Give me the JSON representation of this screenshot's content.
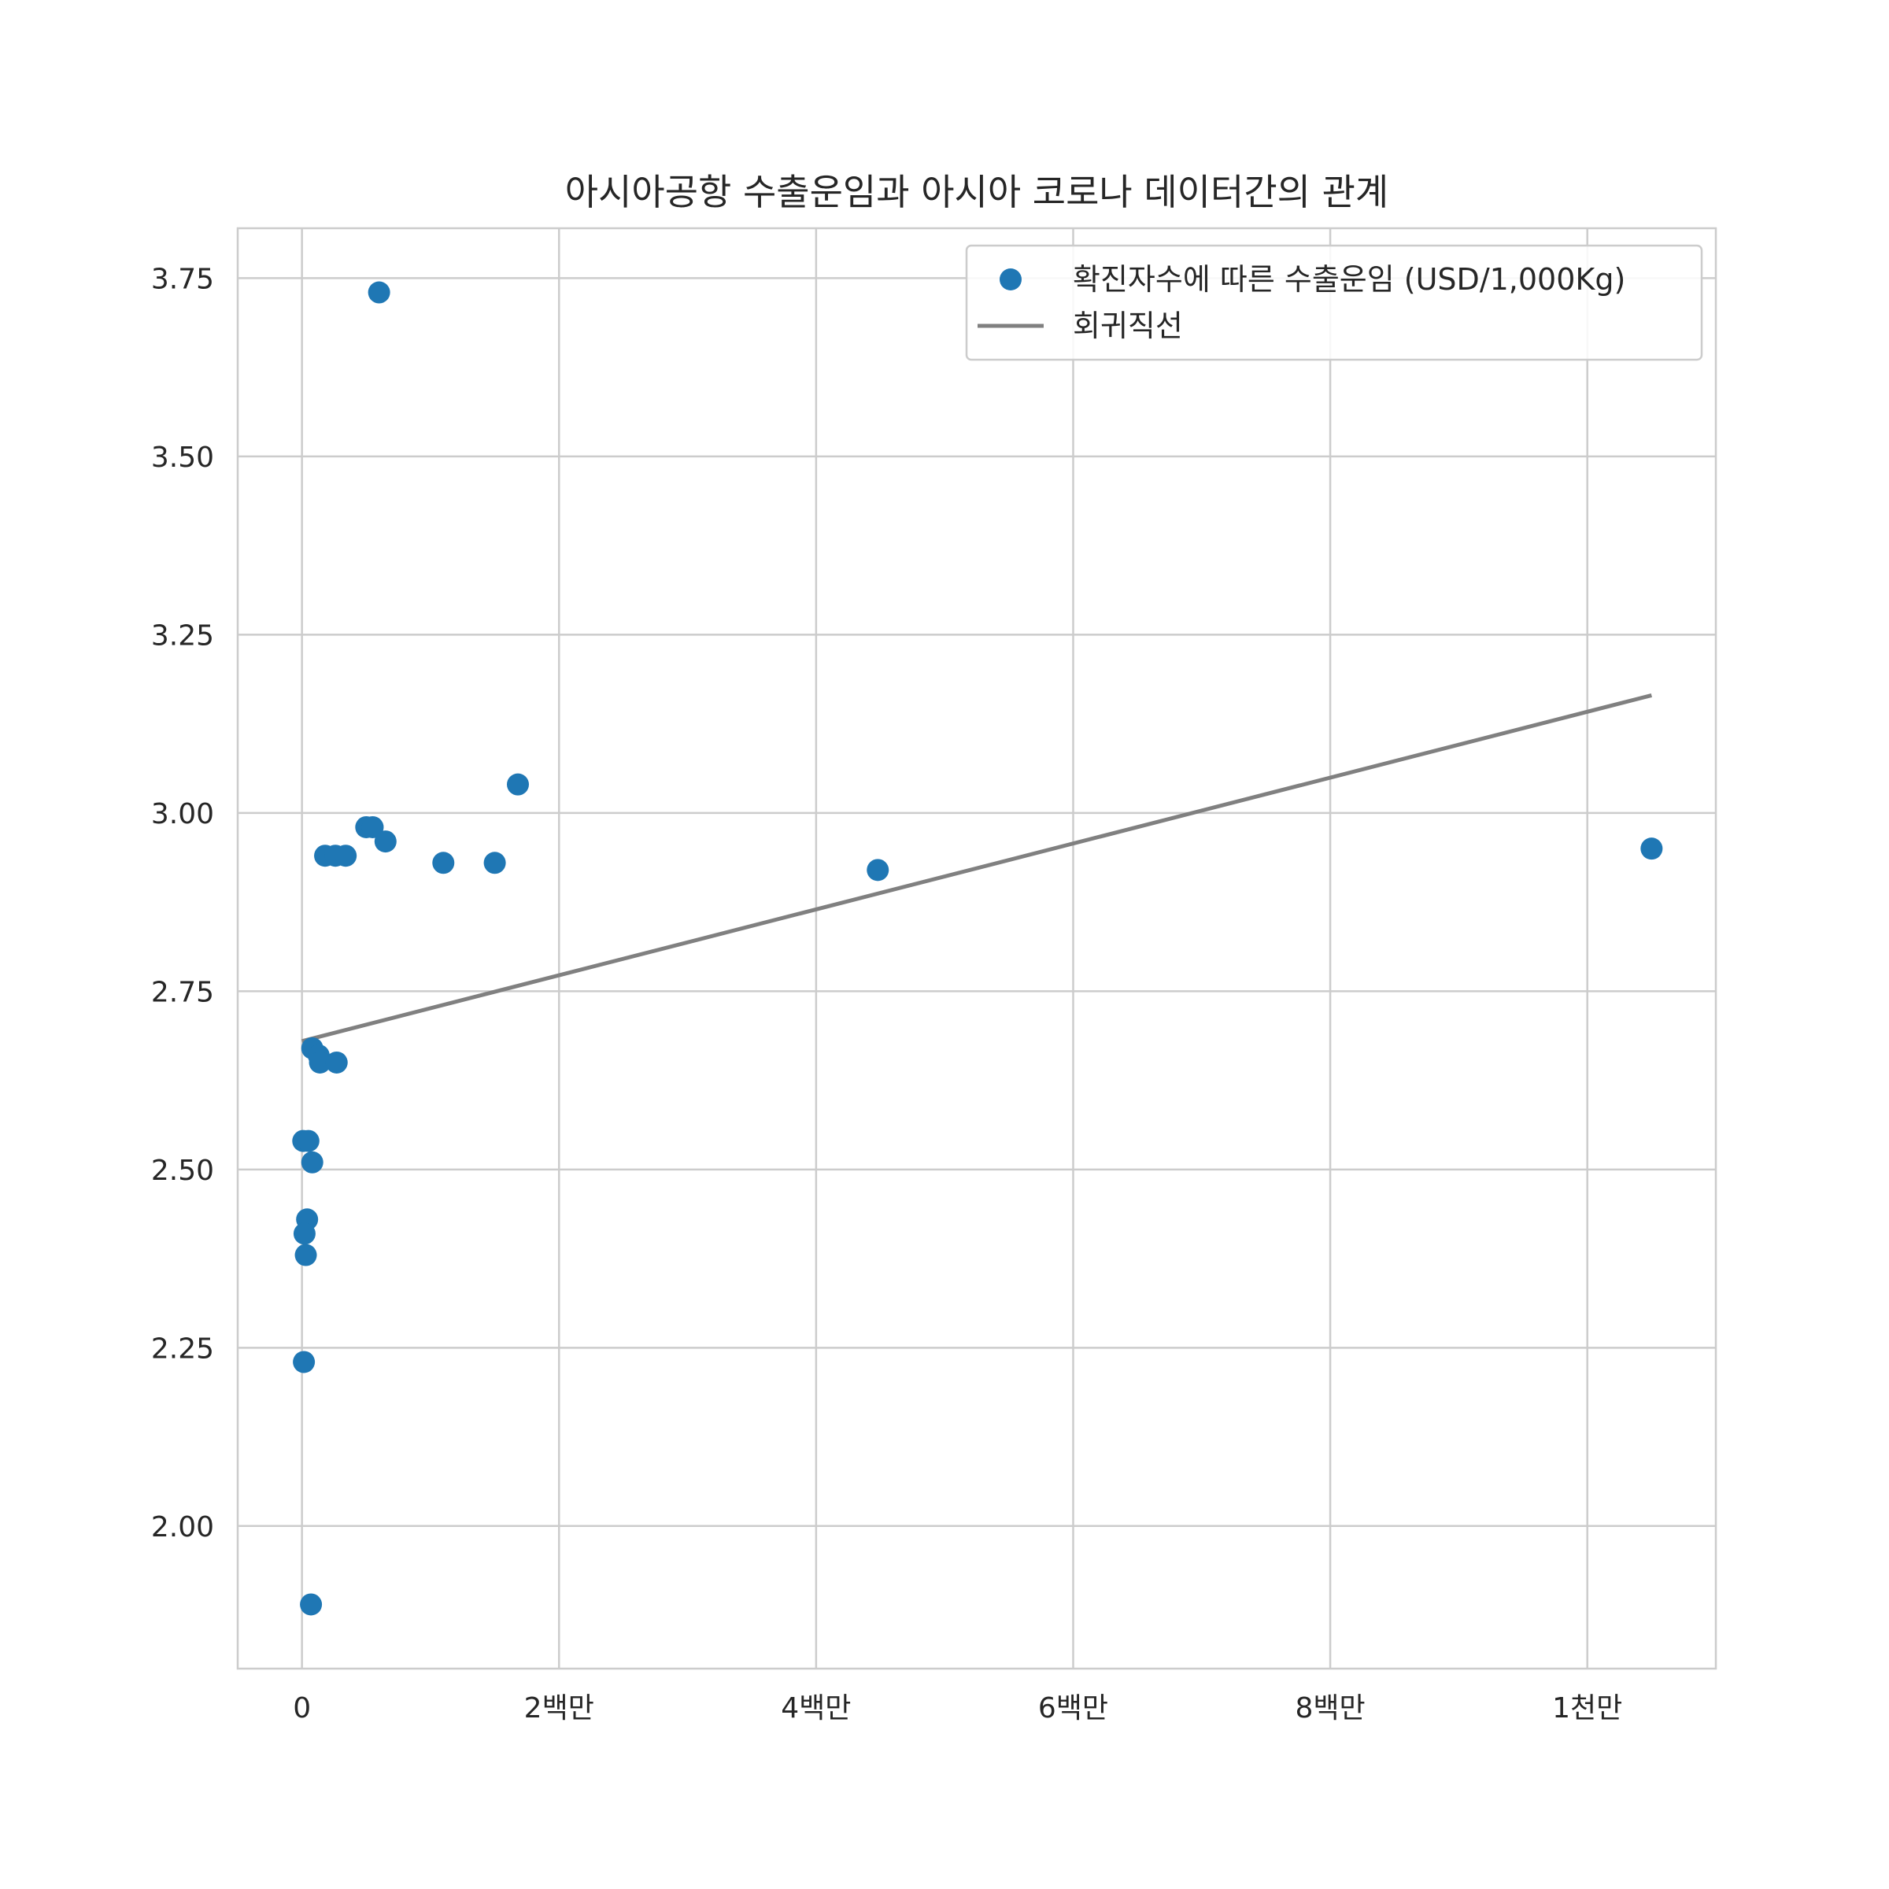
{
  "chart_data": {
    "type": "scatter",
    "title": "아시아공항 수출운임과 아시아 코로나 데이터간의 관계",
    "xlabel": "",
    "ylabel": "",
    "xlim": [
      -500000,
      11000000
    ],
    "ylim": [
      1.8,
      3.82
    ],
    "grid": true,
    "legend_position": "top-right",
    "x_ticks": [
      {
        "value": 0,
        "label": "0"
      },
      {
        "value": 2000000,
        "label": "2백만"
      },
      {
        "value": 4000000,
        "label": "4백만"
      },
      {
        "value": 6000000,
        "label": "6백만"
      },
      {
        "value": 8000000,
        "label": "8백만"
      },
      {
        "value": 10000000,
        "label": "1천만"
      }
    ],
    "y_ticks": [
      {
        "value": 2.0,
        "label": "2.00"
      },
      {
        "value": 2.25,
        "label": "2.25"
      },
      {
        "value": 2.5,
        "label": "2.50"
      },
      {
        "value": 2.75,
        "label": "2.75"
      },
      {
        "value": 3.0,
        "label": "3.00"
      },
      {
        "value": 3.25,
        "label": "3.25"
      },
      {
        "value": 3.5,
        "label": "3.50"
      },
      {
        "value": 3.75,
        "label": "3.75"
      }
    ],
    "series": [
      {
        "name": "확진자수에 따른 수출운임 (USD/1,000Kg)",
        "kind": "scatter",
        "color": "#1f77b4",
        "points": [
          {
            "x": 600000,
            "y": 3.73
          },
          {
            "x": 1680000,
            "y": 3.04
          },
          {
            "x": 500000,
            "y": 2.98
          },
          {
            "x": 550000,
            "y": 2.98
          },
          {
            "x": 650000,
            "y": 2.96
          },
          {
            "x": 180000,
            "y": 2.94
          },
          {
            "x": 260000,
            "y": 2.94
          },
          {
            "x": 340000,
            "y": 2.94
          },
          {
            "x": 1100000,
            "y": 2.93
          },
          {
            "x": 1500000,
            "y": 2.93
          },
          {
            "x": 4480000,
            "y": 2.92
          },
          {
            "x": 10500000,
            "y": 2.95
          },
          {
            "x": 80000,
            "y": 2.67
          },
          {
            "x": 130000,
            "y": 2.66
          },
          {
            "x": 140000,
            "y": 2.65
          },
          {
            "x": 270000,
            "y": 2.65
          },
          {
            "x": 10000,
            "y": 2.54
          },
          {
            "x": 50000,
            "y": 2.54
          },
          {
            "x": 80000,
            "y": 2.51
          },
          {
            "x": 40000,
            "y": 2.43
          },
          {
            "x": 20000,
            "y": 2.41
          },
          {
            "x": 30000,
            "y": 2.38
          },
          {
            "x": 15000,
            "y": 2.23
          },
          {
            "x": 70000,
            "y": 1.89
          }
        ]
      },
      {
        "name": "회귀직선",
        "kind": "line",
        "color": "#808080",
        "points": [
          {
            "x": 0,
            "y": 2.68
          },
          {
            "x": 10500000,
            "y": 3.165
          }
        ]
      }
    ]
  }
}
